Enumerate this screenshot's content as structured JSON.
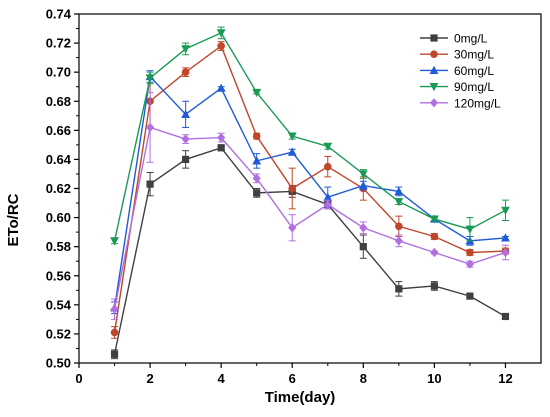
{
  "chart_data": {
    "type": "line",
    "title": "",
    "xlabel": "Time(day)",
    "ylabel": "ETo/RC",
    "xlim": [
      0,
      13
    ],
    "ylim": [
      0.5,
      0.74
    ],
    "xticks": [
      0,
      2,
      4,
      6,
      8,
      10,
      12
    ],
    "xtick_labels": [
      "0",
      "2",
      "4",
      "6",
      "8",
      "10",
      "12"
    ],
    "yticks": [
      0.5,
      0.52,
      0.54,
      0.56,
      0.58,
      0.6,
      0.62,
      0.64,
      0.66,
      0.68,
      0.7,
      0.72,
      0.74
    ],
    "ytick_labels": [
      "0.50",
      "0.52",
      "0.54",
      "0.56",
      "0.58",
      "0.60",
      "0.62",
      "0.64",
      "0.66",
      "0.68",
      "0.70",
      "0.72",
      "0.74"
    ],
    "grid": false,
    "legend_position": "top-right",
    "x": [
      1,
      2,
      3,
      4,
      5,
      6,
      7,
      8,
      9,
      10,
      11,
      12
    ],
    "series": [
      {
        "name": "0mg/L",
        "color": "#404040",
        "marker": "square",
        "values": [
          0.506,
          0.623,
          0.64,
          0.648,
          0.617,
          0.618,
          0.609,
          0.58,
          0.551,
          0.553,
          0.546,
          0.532
        ],
        "errors": [
          0.003,
          0.008,
          0.006,
          0.002,
          0.003,
          0.004,
          0.003,
          0.008,
          0.005,
          0.003,
          0.001,
          0.002
        ]
      },
      {
        "name": "30mg/L",
        "color": "#c0462a",
        "marker": "circle",
        "values": [
          0.521,
          0.68,
          0.7,
          0.718,
          0.656,
          0.62,
          0.635,
          0.62,
          0.594,
          0.587,
          0.576,
          0.577
        ],
        "errors": [
          0.004,
          0.018,
          0.003,
          0.003,
          0.002,
          0.014,
          0.007,
          0.008,
          0.007,
          0.002,
          0.002,
          0.002
        ]
      },
      {
        "name": "60mg/L",
        "color": "#1f5bd8",
        "marker": "triangle-up",
        "values": [
          0.538,
          0.697,
          0.671,
          0.689,
          0.639,
          0.645,
          0.614,
          0.622,
          0.618,
          0.599,
          0.584,
          0.586
        ],
        "errors": [
          0.004,
          0.004,
          0.009,
          0.001,
          0.005,
          0.002,
          0.007,
          0.003,
          0.003,
          0.001,
          0.003,
          0.001
        ]
      },
      {
        "name": "90mg/L",
        "color": "#1a9a55",
        "marker": "triangle-down",
        "values": [
          0.584,
          0.696,
          0.716,
          0.727,
          0.686,
          0.656,
          0.649,
          0.63,
          0.611,
          0.599,
          0.592,
          0.605
        ],
        "errors": [
          0.002,
          0.004,
          0.004,
          0.004,
          0.001,
          0.002,
          0.002,
          0.003,
          0.002,
          0.001,
          0.008,
          0.007
        ]
      },
      {
        "name": "120mg/L",
        "color": "#b070e0",
        "marker": "diamond",
        "values": [
          0.537,
          0.662,
          0.654,
          0.655,
          0.627,
          0.593,
          0.609,
          0.593,
          0.584,
          0.576,
          0.568,
          0.576
        ],
        "errors": [
          0.007,
          0.024,
          0.003,
          0.003,
          0.003,
          0.009,
          0.003,
          0.004,
          0.004,
          0.001,
          0.002,
          0.005
        ]
      }
    ]
  }
}
